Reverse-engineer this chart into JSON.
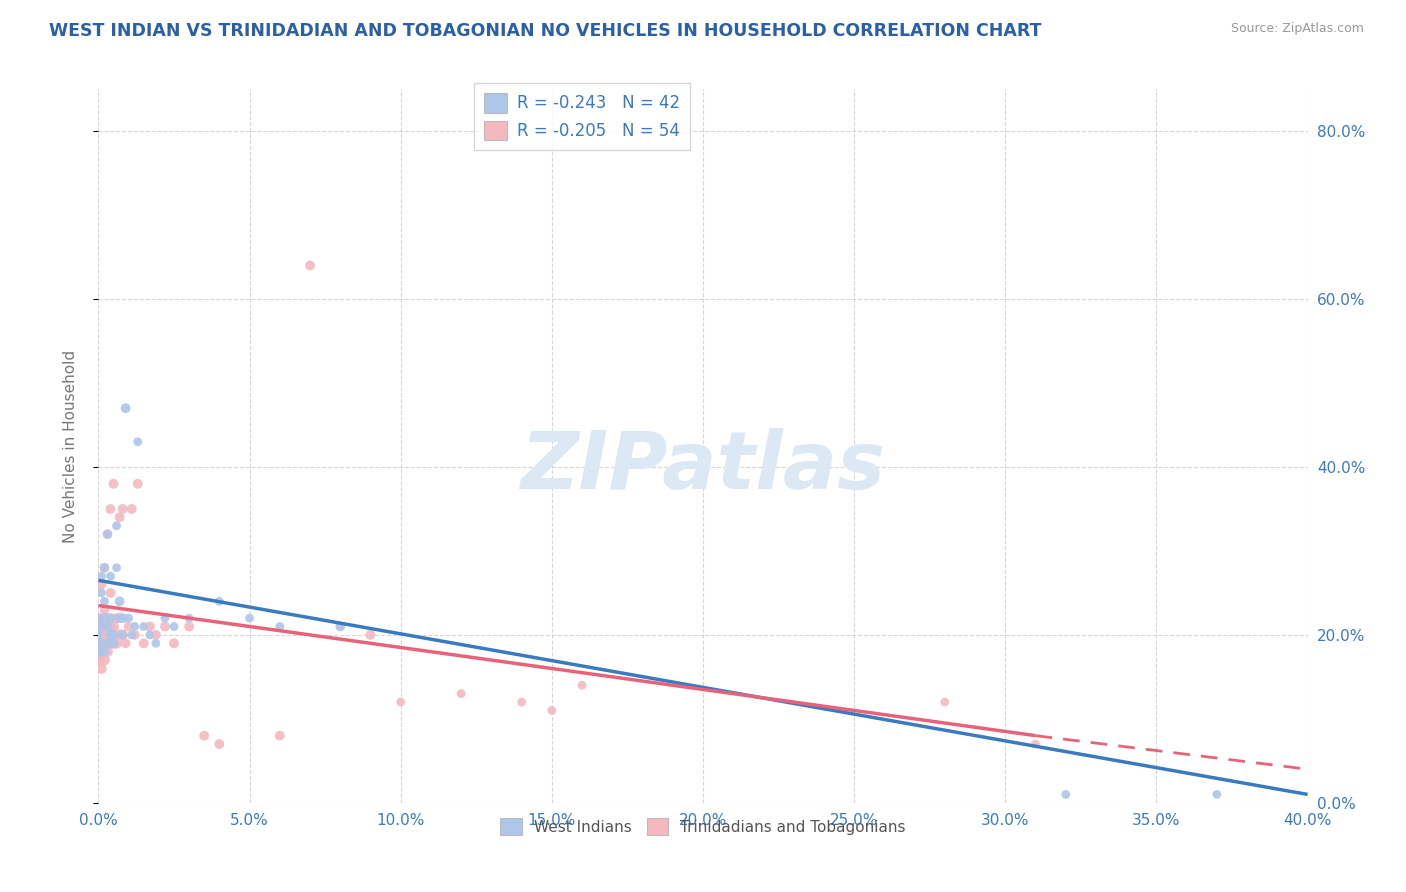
{
  "title": "WEST INDIAN VS TRINIDADIAN AND TOBAGONIAN NO VEHICLES IN HOUSEHOLD CORRELATION CHART",
  "source": "Source: ZipAtlas.com",
  "ylabel": "No Vehicles in Household",
  "watermark": "ZIPatlas",
  "west_indian": {
    "label": "West Indians",
    "R": -0.243,
    "N": 42,
    "color": "#aec6e8",
    "line_color": "#3a7abf",
    "x": [
      0.0,
      0.0,
      0.0,
      0.001,
      0.001,
      0.001,
      0.001,
      0.002,
      0.002,
      0.002,
      0.002,
      0.003,
      0.003,
      0.003,
      0.004,
      0.004,
      0.004,
      0.005,
      0.005,
      0.006,
      0.006,
      0.007,
      0.007,
      0.008,
      0.008,
      0.009,
      0.01,
      0.011,
      0.012,
      0.013,
      0.015,
      0.017,
      0.019,
      0.022,
      0.025,
      0.03,
      0.04,
      0.05,
      0.06,
      0.08,
      0.32,
      0.37
    ],
    "y": [
      0.18,
      0.2,
      0.22,
      0.19,
      0.21,
      0.25,
      0.27,
      0.18,
      0.22,
      0.24,
      0.28,
      0.19,
      0.21,
      0.32,
      0.2,
      0.22,
      0.27,
      0.19,
      0.2,
      0.28,
      0.33,
      0.22,
      0.24,
      0.2,
      0.22,
      0.47,
      0.22,
      0.2,
      0.21,
      0.43,
      0.21,
      0.2,
      0.19,
      0.22,
      0.21,
      0.22,
      0.24,
      0.22,
      0.21,
      0.21,
      0.01,
      0.01
    ],
    "sizes": [
      60,
      40,
      40,
      50,
      50,
      40,
      40,
      50,
      50,
      40,
      40,
      50,
      50,
      40,
      50,
      50,
      40,
      50,
      50,
      40,
      40,
      50,
      50,
      40,
      50,
      50,
      40,
      40,
      40,
      40,
      40,
      40,
      40,
      40,
      40,
      40,
      40,
      40,
      40,
      40,
      40,
      40
    ]
  },
  "trinidadian": {
    "label": "Trinidadians and Tobagonians",
    "R": -0.205,
    "N": 54,
    "color": "#f4b8c1",
    "line_color": "#e8637a",
    "x": [
      0.0,
      0.0,
      0.0,
      0.001,
      0.001,
      0.001,
      0.001,
      0.001,
      0.002,
      0.002,
      0.002,
      0.002,
      0.002,
      0.003,
      0.003,
      0.003,
      0.003,
      0.004,
      0.004,
      0.004,
      0.004,
      0.005,
      0.005,
      0.005,
      0.006,
      0.006,
      0.007,
      0.007,
      0.008,
      0.008,
      0.009,
      0.01,
      0.011,
      0.012,
      0.013,
      0.015,
      0.017,
      0.019,
      0.022,
      0.025,
      0.03,
      0.035,
      0.04,
      0.06,
      0.07,
      0.08,
      0.09,
      0.1,
      0.12,
      0.14,
      0.15,
      0.16,
      0.28,
      0.31
    ],
    "y": [
      0.17,
      0.19,
      0.21,
      0.16,
      0.18,
      0.2,
      0.22,
      0.26,
      0.17,
      0.19,
      0.21,
      0.23,
      0.28,
      0.18,
      0.2,
      0.22,
      0.32,
      0.19,
      0.21,
      0.25,
      0.35,
      0.19,
      0.21,
      0.38,
      0.19,
      0.22,
      0.2,
      0.34,
      0.2,
      0.35,
      0.19,
      0.21,
      0.35,
      0.2,
      0.38,
      0.19,
      0.21,
      0.2,
      0.21,
      0.19,
      0.21,
      0.08,
      0.07,
      0.08,
      0.64,
      0.21,
      0.2,
      0.12,
      0.13,
      0.12,
      0.11,
      0.14,
      0.12,
      0.07
    ],
    "sizes": [
      80,
      60,
      60,
      60,
      60,
      50,
      50,
      50,
      60,
      60,
      50,
      50,
      50,
      60,
      60,
      50,
      50,
      60,
      60,
      50,
      50,
      60,
      60,
      50,
      60,
      50,
      60,
      50,
      60,
      50,
      50,
      50,
      50,
      50,
      50,
      50,
      50,
      50,
      50,
      50,
      50,
      50,
      50,
      50,
      50,
      50,
      50,
      40,
      40,
      40,
      40,
      40,
      40,
      40
    ]
  },
  "xlim": [
    0.0,
    0.4
  ],
  "ylim": [
    0.0,
    0.85
  ],
  "xticks": [
    0.0,
    0.05,
    0.1,
    0.15,
    0.2,
    0.25,
    0.3,
    0.35,
    0.4
  ],
  "xtick_labels": [
    "0.0%",
    "5.0%",
    "10.0%",
    "15.0%",
    "20.0%",
    "25.0%",
    "30.0%",
    "35.0%",
    "40.0%"
  ],
  "ytick_positions": [
    0.0,
    0.2,
    0.4,
    0.6,
    0.8
  ],
  "ytick_labels_right": [
    "0.0%",
    "20.0%",
    "40.0%",
    "60.0%",
    "80.0%"
  ],
  "grid_color": "#cccccc",
  "background_color": "#ffffff",
  "title_color": "#2b5fa8",
  "axis_label_color": "#777777",
  "tick_color": "#3a7abf",
  "watermark_color": "#dde8f5",
  "regression_line_wi_x0": 0.0,
  "regression_line_wi_y0": 0.265,
  "regression_line_wi_x1": 0.4,
  "regression_line_wi_y1": 0.01,
  "regression_line_tt_x0": 0.0,
  "regression_line_tt_y0": 0.235,
  "regression_line_tt_x1": 0.31,
  "regression_line_tt_y1": 0.08,
  "regression_line_tt_dash_x0": 0.31,
  "regression_line_tt_dash_y0": 0.08,
  "regression_line_tt_dash_x1": 0.4,
  "regression_line_tt_dash_y1": 0.04
}
